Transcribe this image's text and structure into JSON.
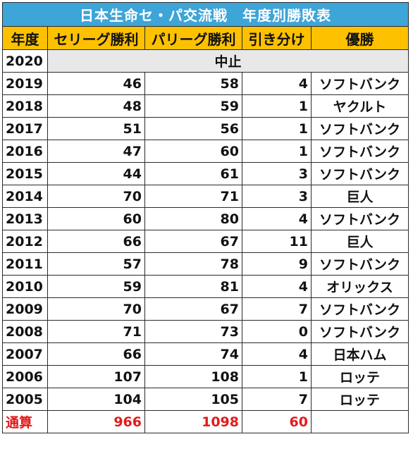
{
  "table": {
    "title": "日本生命セ・パ交流戦　年度別勝敗表",
    "headers": [
      "年度",
      "セリーグ勝利",
      "パリーグ勝利",
      "引き分け",
      "優勝"
    ],
    "cancelled_row": {
      "year": "2020",
      "note": "中止"
    },
    "rows": [
      {
        "year": "2019",
        "central": "46",
        "pacific": "58",
        "draws": "4",
        "winner": "ソフトバンク"
      },
      {
        "year": "2018",
        "central": "48",
        "pacific": "59",
        "draws": "1",
        "winner": "ヤクルト"
      },
      {
        "year": "2017",
        "central": "51",
        "pacific": "56",
        "draws": "1",
        "winner": "ソフトバンク"
      },
      {
        "year": "2016",
        "central": "47",
        "pacific": "60",
        "draws": "1",
        "winner": "ソフトバンク"
      },
      {
        "year": "2015",
        "central": "44",
        "pacific": "61",
        "draws": "3",
        "winner": "ソフトバンク"
      },
      {
        "year": "2014",
        "central": "70",
        "pacific": "71",
        "draws": "3",
        "winner": "巨人"
      },
      {
        "year": "2013",
        "central": "60",
        "pacific": "80",
        "draws": "4",
        "winner": "ソフトバンク"
      },
      {
        "year": "2012",
        "central": "66",
        "pacific": "67",
        "draws": "11",
        "winner": "巨人"
      },
      {
        "year": "2011",
        "central": "57",
        "pacific": "78",
        "draws": "9",
        "winner": "ソフトバンク"
      },
      {
        "year": "2010",
        "central": "59",
        "pacific": "81",
        "draws": "4",
        "winner": "オリックス"
      },
      {
        "year": "2009",
        "central": "70",
        "pacific": "67",
        "draws": "7",
        "winner": "ソフトバンク"
      },
      {
        "year": "2008",
        "central": "71",
        "pacific": "73",
        "draws": "0",
        "winner": "ソフトバンク"
      },
      {
        "year": "2007",
        "central": "66",
        "pacific": "74",
        "draws": "4",
        "winner": "日本ハム"
      },
      {
        "year": "2006",
        "central": "107",
        "pacific": "108",
        "draws": "1",
        "winner": "ロッテ"
      },
      {
        "year": "2005",
        "central": "104",
        "pacific": "105",
        "draws": "7",
        "winner": "ロッテ"
      }
    ],
    "total": {
      "label": "通算",
      "central": "966",
      "pacific": "1098",
      "draws": "60"
    },
    "colors": {
      "title_bg": "#3ea5d8",
      "header_bg": "#fdc100",
      "cancelled_bg": "#e8e8e8",
      "total_text": "#e31b1b"
    }
  }
}
